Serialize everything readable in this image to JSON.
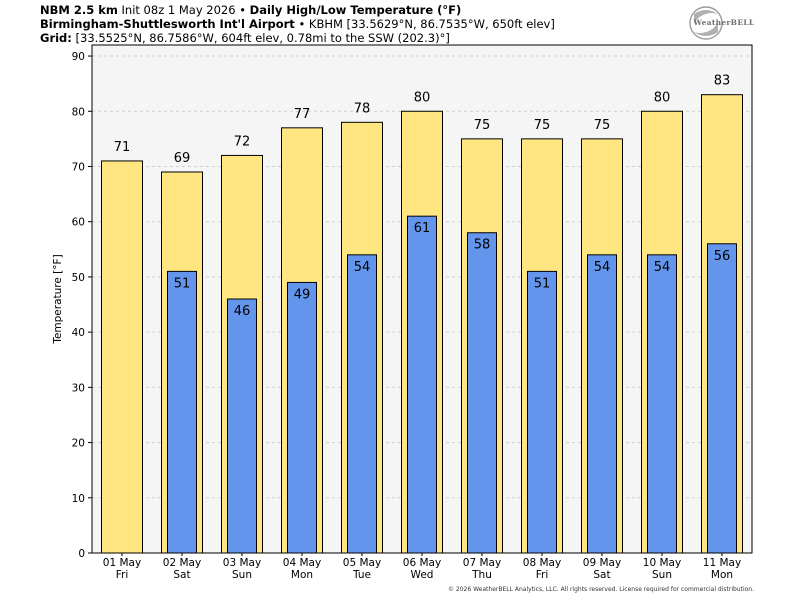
{
  "header": {
    "line1": {
      "model": "NBM 2.5 km",
      "init": "Init 08z 1 May 2026",
      "separator": "•",
      "title": "Daily High/Low Temperature (°F)"
    },
    "line2": {
      "station": "Birmingham-Shuttlesworth Int'l Airport",
      "separator": "•",
      "details": "KBHM [33.5629°N, 86.7535°W, 650ft elev]"
    },
    "line3": {
      "label": "Grid:",
      "details": "[33.5525°N, 86.7586°W, 604ft elev, 0.78mi to the SSW (202.3)°]"
    }
  },
  "logo": {
    "text": "WeatherBELL"
  },
  "copyright": "© 2026 WeatherBELL Analytics, LLC. All rights reserved. License required for commercial distribution.",
  "colors": {
    "high_fill": "#ffe680",
    "low_fill": "#6495ed",
    "bar_stroke": "#000000",
    "plot_bg": "#f5f5f5",
    "grid": "#d0d0d0"
  },
  "chart_data": {
    "type": "bar",
    "categories": [
      "01 May\nFri",
      "02 May\nSat",
      "03 May\nSun",
      "04 May\nMon",
      "05 May\nTue",
      "06 May\nWed",
      "07 May\nThu",
      "08 May\nFri",
      "09 May\nSat",
      "10 May\nSun",
      "11 May\nMon"
    ],
    "category_dates": [
      "01 May",
      "02 May",
      "03 May",
      "04 May",
      "05 May",
      "06 May",
      "07 May",
      "08 May",
      "09 May",
      "10 May",
      "11 May"
    ],
    "category_days": [
      "Fri",
      "Sat",
      "Sun",
      "Mon",
      "Tue",
      "Wed",
      "Thu",
      "Fri",
      "Sat",
      "Sun",
      "Mon"
    ],
    "series": [
      {
        "values": [
          71,
          69,
          72,
          77,
          78,
          80,
          75,
          75,
          75,
          80,
          83
        ]
      },
      {
        "values": [
          null,
          51,
          46,
          49,
          54,
          61,
          58,
          51,
          54,
          54,
          56
        ]
      }
    ],
    "ylabel": "Temperature [°F]",
    "xlabel": "",
    "ylim": [
      0,
      92
    ],
    "yticks": [
      0,
      10,
      20,
      30,
      40,
      50,
      60,
      70,
      80,
      90
    ],
    "grid": true
  }
}
